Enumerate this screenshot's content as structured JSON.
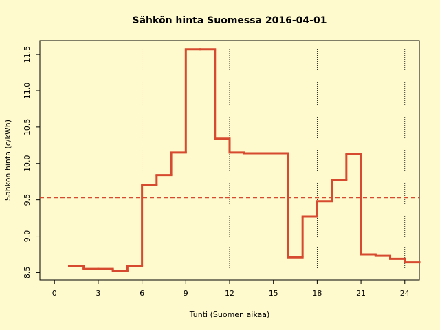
{
  "chart_data": {
    "type": "step",
    "title": "Sähkön hinta Suomessa 2016-04-01",
    "xlabel": "Tunti (Suomen aikaa)",
    "ylabel": "Sähkön hinta (c/kWh)",
    "x": [
      1,
      2,
      3,
      4,
      5,
      6,
      7,
      8,
      9,
      10,
      11,
      12,
      13,
      14,
      15,
      16,
      17,
      18,
      19,
      20,
      21,
      22,
      23,
      24
    ],
    "series": [
      {
        "name": "Sähkön hinta",
        "color": "#d64a2f",
        "values": [
          8.59,
          8.55,
          8.55,
          8.52,
          8.59,
          9.7,
          9.84,
          10.15,
          11.57,
          11.57,
          10.34,
          10.15,
          10.14,
          10.14,
          10.14,
          8.71,
          9.27,
          9.48,
          9.77,
          10.13,
          8.75,
          8.73,
          8.69,
          8.64
        ]
      }
    ],
    "mean_line": 9.53,
    "vlines": [
      6,
      12,
      18,
      24
    ],
    "xlim": [
      -1,
      25
    ],
    "ylim": [
      8.4,
      11.69
    ],
    "xticks": [
      0,
      3,
      6,
      9,
      12,
      15,
      18,
      21,
      24
    ],
    "yticks": [
      {
        "value": 8.5,
        "label": "8.5"
      },
      {
        "value": 9,
        "label": "9.0"
      },
      {
        "value": 9.5,
        "label": "9.5"
      },
      {
        "value": 10,
        "label": "10.0"
      },
      {
        "value": 10.5,
        "label": "10.5"
      },
      {
        "value": 11,
        "label": "11.0"
      },
      {
        "value": 11.5,
        "label": "11.5"
      }
    ]
  }
}
